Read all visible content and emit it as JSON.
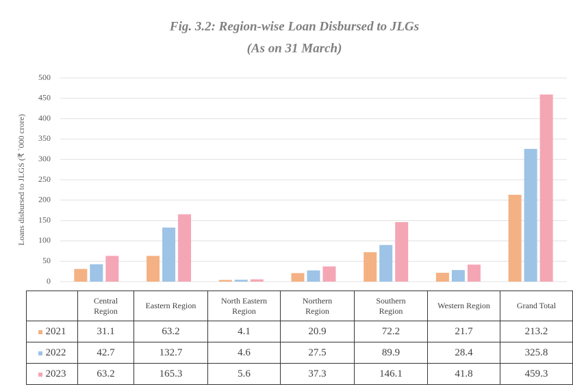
{
  "chart_data": {
    "type": "bar",
    "title": "Fig. 3.2: Region-wise Loan Disbursed to JLGs",
    "subtitle": "(As on 31 March)",
    "y_label": "Loans disbursed to JLGS (₹ `000 crore)",
    "categories": [
      "Central Region",
      "Eastern Region",
      "North Eastern Region",
      "Northern Region",
      "Southern Region",
      "Western Region",
      "Grand Total"
    ],
    "series": [
      {
        "name": "2021",
        "color": "#f4b183",
        "values": [
          31.1,
          63.2,
          4.1,
          20.9,
          72.2,
          21.7,
          213.2
        ]
      },
      {
        "name": "2022",
        "color": "#9dc3e6",
        "values": [
          42.7,
          132.7,
          4.6,
          27.5,
          89.9,
          28.4,
          325.8
        ]
      },
      {
        "name": "2023",
        "color": "#f4a6b4",
        "values": [
          63.2,
          165.3,
          5.6,
          37.3,
          146.1,
          41.8,
          459.3
        ]
      }
    ],
    "ylim": [
      0,
      500
    ],
    "yticks": [
      0,
      50,
      100,
      150,
      200,
      250,
      300,
      350,
      400,
      450,
      500
    ],
    "grid": true
  }
}
